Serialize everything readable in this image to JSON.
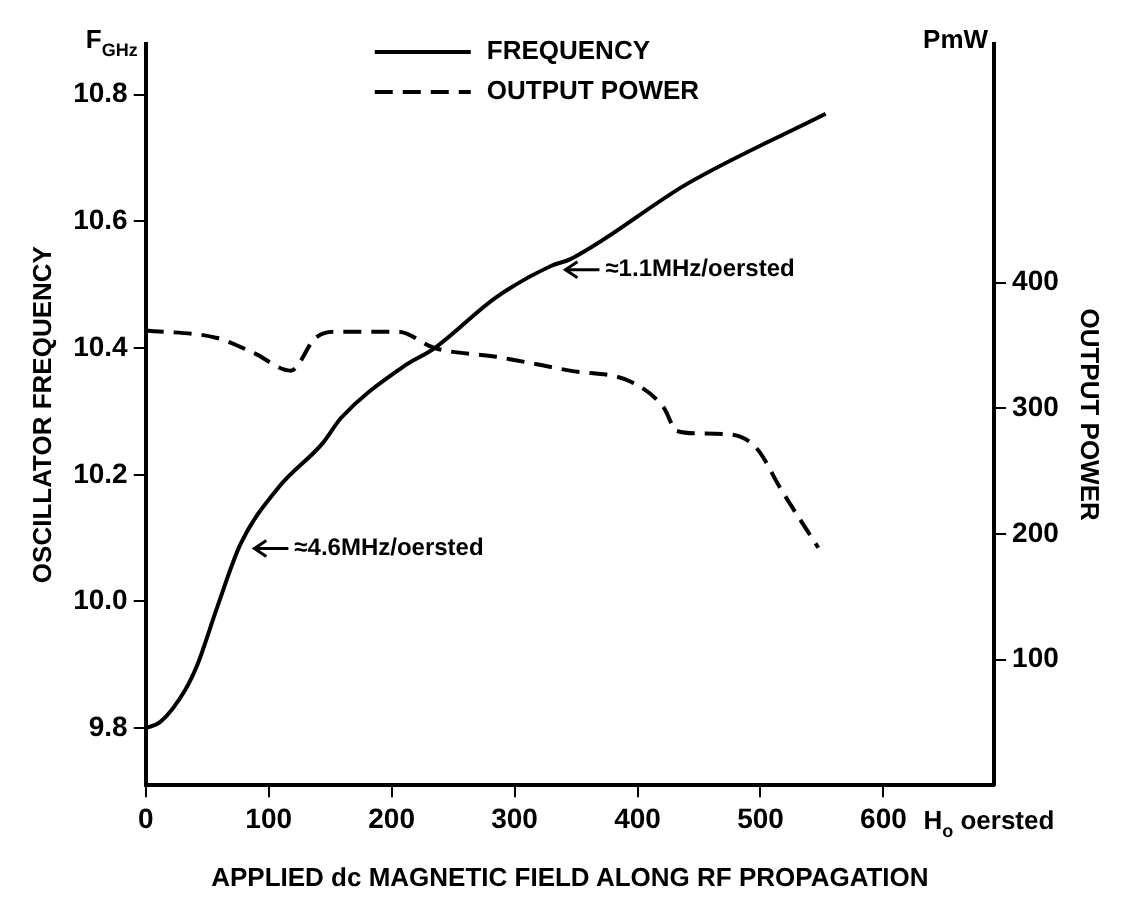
{
  "chart_data": {
    "type": "line",
    "xlabel": "APPLIED dc MAGNETIC FIELD ALONG RF PROPAGATION",
    "ylabel": "OSCILLATOR FREQUENCY",
    "y2label": "OUTPUT POWER",
    "xlim": [
      0,
      690
    ],
    "xticks": [
      0,
      100,
      200,
      300,
      400,
      500,
      600
    ],
    "ylim": [
      9.71,
      10.88
    ],
    "yticks": [
      {
        "value": 9.8,
        "label": "9.8"
      },
      {
        "value": 10,
        "label": "10.0"
      },
      {
        "value": 10.2,
        "label": "10.2"
      },
      {
        "value": 10.4,
        "label": "10.4"
      },
      {
        "value": 10.6,
        "label": "10.6"
      },
      {
        "value": 10.8,
        "label": "10.8"
      }
    ],
    "y2lim": [
      0,
      590
    ],
    "y2ticks": [
      100,
      200,
      300,
      400
    ],
    "legend": "top",
    "marker": "none",
    "grid": false,
    "series": [
      {
        "name": "FREQUENCY",
        "color": "#000000",
        "line_style": "solid",
        "x": [
          0,
          12,
          32,
          42,
          58,
          77,
          108,
          144,
          159,
          209,
          235,
          285,
          330,
          345,
          441,
          553
        ],
        "values": [
          9.8,
          9.81,
          9.86,
          9.9,
          9.99,
          10.09,
          10.18,
          10.25,
          10.29,
          10.37,
          10.4,
          10.48,
          10.53,
          10.54,
          10.66,
          10.77
        ]
      },
      {
        "name": "OUTPUT POWER",
        "color": "#000000",
        "line_style": "dashed",
        "axis": "y2",
        "x": [
          0,
          58,
          88,
          118,
          138,
          153,
          205,
          235,
          285,
          345,
          395,
          421,
          432,
          452,
          477,
          497,
          517,
          547
        ],
        "values": [
          362,
          356,
          344,
          330,
          356,
          361,
          361,
          348,
          341,
          330,
          321,
          301,
          282,
          280,
          279,
          268,
          235,
          189
        ]
      }
    ],
    "annotations": [
      "F$_{GHz}$",
      "PmW",
      "H$_{o}$ oersted",
      {
        "text": "≈1.1MHz/oersted",
        "x": 330,
        "y": 10.53
      },
      {
        "text": "≈4.6MHz/oersted",
        "x": 77,
        "y": 10.09
      }
    ]
  }
}
